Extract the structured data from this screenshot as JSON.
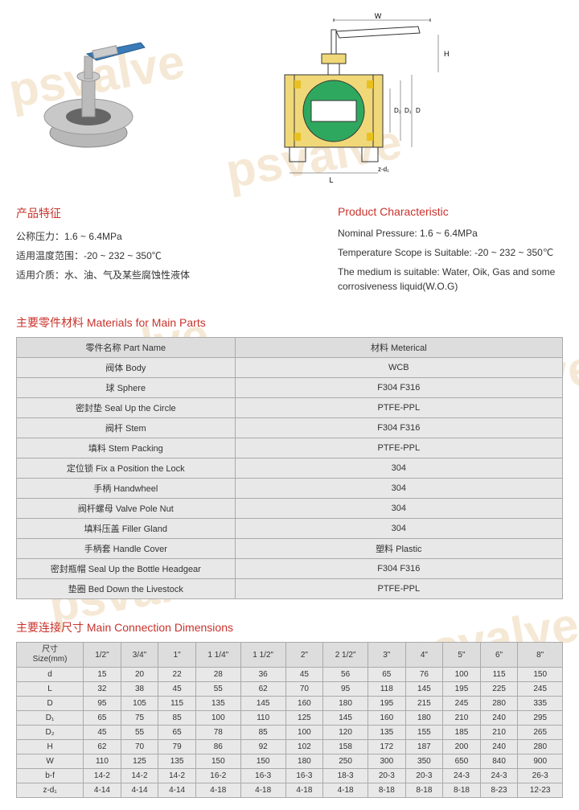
{
  "watermark_text": "psvalve",
  "characteristics": {
    "cn_title": "产品特征",
    "en_title": "Product Characteristic",
    "cn_lines": [
      "公称压力：1.6 ~ 6.4MPa",
      "适用温度范围：-20 ~ 232 ~ 350℃",
      "适用介质：水、油、气及某些腐蚀性液体"
    ],
    "en_lines": [
      "Nominal Pressure: 1.6 ~ 6.4MPa",
      "Temperature Scope is Suitable: -20 ~ 232 ~ 350℃",
      "The medium is suitable: Water, Oik, Gas and some corrosiveness liquid(W.O.G)"
    ]
  },
  "materials": {
    "title": "主要零件材料 Materials for Main Parts",
    "headers": [
      "零件名称 Part Name",
      "材料 Meterical"
    ],
    "rows": [
      [
        "阀体 Body",
        "WCB"
      ],
      [
        "球 Sphere",
        "F304  F316"
      ],
      [
        "密封垫 Seal Up the Circle",
        "PTFE-PPL"
      ],
      [
        "阀杆 Stem",
        "F304  F316"
      ],
      [
        "填料 Stem Packing",
        "PTFE-PPL"
      ],
      [
        "定位锁 Fix a Position the Lock",
        "304"
      ],
      [
        "手柄 Handwheel",
        "304"
      ],
      [
        "阀杆螺母 Valve Pole Nut",
        "304"
      ],
      [
        "填料压盖 Filler Gland",
        "304"
      ],
      [
        "手柄套 Handle Cover",
        "塑料 Plastic"
      ],
      [
        "密封瓶帽 Seal Up the Bottle Headgear",
        "F304  F316"
      ],
      [
        "垫圈 Bed Down the Livestock",
        "PTFE-PPL"
      ]
    ]
  },
  "dimensions": {
    "title": "主要连接尺寸 Main Connection Dimensions",
    "size_label_cn": "尺寸",
    "size_label_en": "Size(mm)",
    "columns": [
      "1/2\"",
      "3/4\"",
      "1\"",
      "1 1/4\"",
      "1 1/2\"",
      "2\"",
      "2 1/2\"",
      "3\"",
      "4\"",
      "5\"",
      "6\"",
      "8\""
    ],
    "rows": [
      {
        "label": "d",
        "values": [
          "15",
          "20",
          "22",
          "28",
          "36",
          "45",
          "56",
          "65",
          "76",
          "100",
          "115",
          "150"
        ]
      },
      {
        "label": "L",
        "values": [
          "32",
          "38",
          "45",
          "55",
          "62",
          "70",
          "95",
          "118",
          "145",
          "195",
          "225",
          "245"
        ]
      },
      {
        "label": "D",
        "values": [
          "95",
          "105",
          "115",
          "135",
          "145",
          "160",
          "180",
          "195",
          "215",
          "245",
          "280",
          "335"
        ]
      },
      {
        "label": "D₁",
        "values": [
          "65",
          "75",
          "85",
          "100",
          "110",
          "125",
          "145",
          "160",
          "180",
          "210",
          "240",
          "295"
        ]
      },
      {
        "label": "D₂",
        "values": [
          "45",
          "55",
          "65",
          "78",
          "85",
          "100",
          "120",
          "135",
          "155",
          "185",
          "210",
          "265"
        ]
      },
      {
        "label": "H",
        "values": [
          "62",
          "70",
          "79",
          "86",
          "92",
          "102",
          "158",
          "172",
          "187",
          "200",
          "240",
          "280"
        ]
      },
      {
        "label": "W",
        "values": [
          "110",
          "125",
          "135",
          "150",
          "150",
          "180",
          "250",
          "300",
          "350",
          "650",
          "840",
          "900"
        ]
      },
      {
        "label": "b-f",
        "values": [
          "14-2",
          "14-2",
          "14-2",
          "16-2",
          "16-3",
          "16-3",
          "18-3",
          "20-3",
          "20-3",
          "24-3",
          "24-3",
          "26-3"
        ]
      },
      {
        "label": "z-d₁",
        "values": [
          "4-14",
          "4-14",
          "4-14",
          "4-18",
          "4-18",
          "4-18",
          "4-18",
          "8-18",
          "8-18",
          "8-18",
          "8-23",
          "12-23"
        ]
      }
    ]
  },
  "diagram_labels": [
    "W",
    "H",
    "D₂",
    "D₁",
    "D",
    "L",
    "z-d₁"
  ],
  "colors": {
    "accent": "#c8332c",
    "watermark": "#f5e8d5",
    "table_bg": "#e8e8e8",
    "header_bg": "#dddddd",
    "border": "#aaaaaa",
    "handle": "#3a7bb8",
    "valve_body": "#b8b8b8",
    "ball": "#2fa85f"
  }
}
